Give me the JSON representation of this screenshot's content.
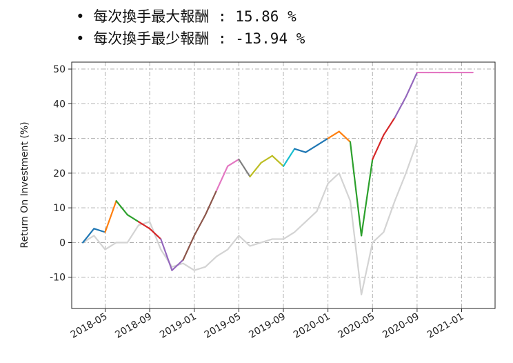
{
  "annotations": [
    "每次換手最大報酬 : 15.86 %",
    "每次換手最少報酬 : -13.94 %"
  ],
  "chart_data": {
    "type": "line",
    "y_label": "Return On Investment (%)",
    "x": [
      "2018-03",
      "2018-04",
      "2018-05",
      "2018-06",
      "2018-07",
      "2018-08",
      "2018-09",
      "2018-10",
      "2018-11",
      "2018-12",
      "2019-01",
      "2019-02",
      "2019-03",
      "2019-04",
      "2019-05",
      "2019-06",
      "2019-07",
      "2019-08",
      "2019-09",
      "2019-10",
      "2019-11",
      "2019-12",
      "2020-01",
      "2020-02",
      "2020-03",
      "2020-04",
      "2020-05",
      "2020-06",
      "2020-07",
      "2020-08",
      "2020-09",
      "2020-10",
      "2020-11",
      "2020-12",
      "2021-01",
      "2021-02"
    ],
    "series": [
      {
        "color": "#d3d3d3",
        "values": [
          0,
          2,
          -2,
          0,
          0,
          5,
          6,
          -2,
          -7,
          -6,
          -8,
          -7,
          -4,
          -2,
          2,
          -1,
          0,
          1,
          1,
          3,
          6,
          9,
          17,
          20,
          12,
          -15,
          0,
          3,
          12,
          20,
          29,
          null,
          null,
          null,
          null,
          null
        ]
      },
      {
        "values": [
          0,
          4,
          3,
          12,
          8,
          6,
          4,
          1,
          -8,
          -5,
          2,
          8,
          15,
          22,
          24,
          19,
          23,
          25,
          22,
          27,
          26,
          28,
          30,
          32,
          29,
          2,
          24,
          31,
          36,
          42,
          49,
          49,
          49,
          49,
          49,
          49
        ],
        "colors": [
          "#1f77b4",
          "#1f77b4",
          "#1f77b4",
          "#ff7f0e",
          "#2ca02c",
          "#2ca02c",
          "#d62728",
          "#d62728",
          "#9467bd",
          "#9467bd",
          "#8c564b",
          "#8c564b",
          "#8c564b",
          "#e377c2",
          "#e377c2",
          "#7f7f7f",
          "#bcbd22",
          "#bcbd22",
          "#bcbd22",
          "#17becf",
          "#1f77b4",
          "#1f77b4",
          "#1f77b4",
          "#ff7f0e",
          "#ff7f0e",
          "#2ca02c",
          "#2ca02c",
          "#d62728",
          "#d62728",
          "#9467bd",
          "#9467bd",
          "#e377c2",
          "#e377c2",
          "#e377c2",
          "#e377c2",
          "#e377c2"
        ]
      }
    ],
    "xlim": [
      "2018-02",
      "2021-04"
    ],
    "xticks": [
      "2018-05",
      "2018-09",
      "2019-01",
      "2019-05",
      "2019-09",
      "2020-01",
      "2020-05",
      "2020-09",
      "2021-01"
    ],
    "ylim": [
      -19,
      52
    ],
    "yticks": [
      -10,
      0,
      10,
      20,
      30,
      40,
      50
    ],
    "grid": true
  }
}
